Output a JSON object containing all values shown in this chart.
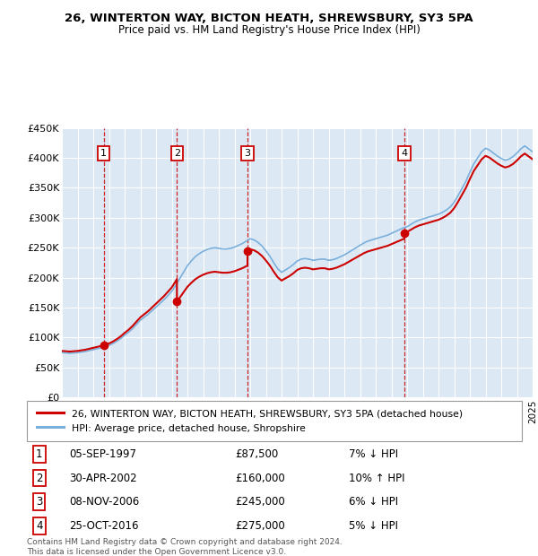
{
  "title": "26, WINTERTON WAY, BICTON HEATH, SHREWSBURY, SY3 5PA",
  "subtitle": "Price paid vs. HM Land Registry's House Price Index (HPI)",
  "ylim": [
    0,
    450000
  ],
  "yticks": [
    0,
    50000,
    100000,
    150000,
    200000,
    250000,
    300000,
    350000,
    400000,
    450000
  ],
  "ytick_labels": [
    "£0",
    "£50K",
    "£100K",
    "£150K",
    "£200K",
    "£250K",
    "£300K",
    "£350K",
    "£400K",
    "£450K"
  ],
  "xmin": 1995.0,
  "xmax": 2025.0,
  "bg_color": "#dce9f5",
  "grid_color": "#ffffff",
  "sale_events": [
    {
      "num": 1,
      "year": 1997.67,
      "price": 87500,
      "date": "05-SEP-1997",
      "pct": "7%",
      "dir": "↓"
    },
    {
      "num": 2,
      "year": 2002.33,
      "price": 160000,
      "date": "30-APR-2002",
      "pct": "10%",
      "dir": "↑"
    },
    {
      "num": 3,
      "year": 2006.83,
      "price": 245000,
      "date": "08-NOV-2006",
      "pct": "6%",
      "dir": "↓"
    },
    {
      "num": 4,
      "year": 2016.83,
      "price": 275000,
      "date": "25-OCT-2016",
      "pct": "5%",
      "dir": "↓"
    }
  ],
  "red_line_color": "#cc0000",
  "blue_line_color": "#7aafdc",
  "legend_label_red": "26, WINTERTON WAY, BICTON HEATH, SHREWSBURY, SY3 5PA (detached house)",
  "legend_label_blue": "HPI: Average price, detached house, Shropshire",
  "footer": "Contains HM Land Registry data © Crown copyright and database right 2024.\nThis data is licensed under the Open Government Licence v3.0.",
  "hpi_years": [
    1995.0,
    1995.25,
    1995.5,
    1995.75,
    1996.0,
    1996.25,
    1996.5,
    1996.75,
    1997.0,
    1997.25,
    1997.5,
    1997.75,
    1998.0,
    1998.25,
    1998.5,
    1998.75,
    1999.0,
    1999.25,
    1999.5,
    1999.75,
    2000.0,
    2000.25,
    2000.5,
    2000.75,
    2001.0,
    2001.25,
    2001.5,
    2001.75,
    2002.0,
    2002.25,
    2002.5,
    2002.75,
    2003.0,
    2003.25,
    2003.5,
    2003.75,
    2004.0,
    2004.25,
    2004.5,
    2004.75,
    2005.0,
    2005.25,
    2005.5,
    2005.75,
    2006.0,
    2006.25,
    2006.5,
    2006.75,
    2007.0,
    2007.25,
    2007.5,
    2007.75,
    2008.0,
    2008.25,
    2008.5,
    2008.75,
    2009.0,
    2009.25,
    2009.5,
    2009.75,
    2010.0,
    2010.25,
    2010.5,
    2010.75,
    2011.0,
    2011.25,
    2011.5,
    2011.75,
    2012.0,
    2012.25,
    2012.5,
    2012.75,
    2013.0,
    2013.25,
    2013.5,
    2013.75,
    2014.0,
    2014.25,
    2014.5,
    2014.75,
    2015.0,
    2015.25,
    2015.5,
    2015.75,
    2016.0,
    2016.25,
    2016.5,
    2016.75,
    2017.0,
    2017.25,
    2017.5,
    2017.75,
    2018.0,
    2018.25,
    2018.5,
    2018.75,
    2019.0,
    2019.25,
    2019.5,
    2019.75,
    2020.0,
    2020.25,
    2020.5,
    2020.75,
    2021.0,
    2021.25,
    2021.5,
    2021.75,
    2022.0,
    2022.25,
    2022.5,
    2022.75,
    2023.0,
    2023.25,
    2023.5,
    2023.75,
    2024.0,
    2024.25,
    2024.5,
    2024.75,
    2025.0
  ],
  "hpi_values": [
    75000,
    74500,
    74000,
    74500,
    75000,
    76000,
    77000,
    78500,
    80000,
    81500,
    83000,
    85000,
    87000,
    90000,
    94000,
    98500,
    104000,
    109000,
    115000,
    122000,
    129000,
    134000,
    139000,
    145000,
    151000,
    157000,
    163000,
    170000,
    177000,
    187000,
    198000,
    209000,
    220000,
    228000,
    235000,
    240000,
    244000,
    247000,
    249000,
    250000,
    249000,
    248000,
    248000,
    249000,
    251000,
    254000,
    257000,
    261000,
    265000,
    263000,
    259000,
    253000,
    245000,
    236000,
    225000,
    215000,
    209000,
    213000,
    217000,
    222000,
    228000,
    231000,
    232000,
    231000,
    229000,
    230000,
    231000,
    231000,
    229000,
    230000,
    232000,
    235000,
    238000,
    242000,
    246000,
    250000,
    254000,
    258000,
    261000,
    263000,
    265000,
    267000,
    269000,
    271000,
    274000,
    277000,
    280000,
    283000,
    285000,
    289000,
    293000,
    296000,
    298000,
    300000,
    302000,
    304000,
    306000,
    309000,
    313000,
    318000,
    326000,
    337000,
    349000,
    361000,
    376000,
    390000,
    400000,
    410000,
    416000,
    413000,
    408000,
    403000,
    399000,
    396000,
    398000,
    402000,
    408000,
    415000,
    420000,
    415000,
    410000
  ]
}
